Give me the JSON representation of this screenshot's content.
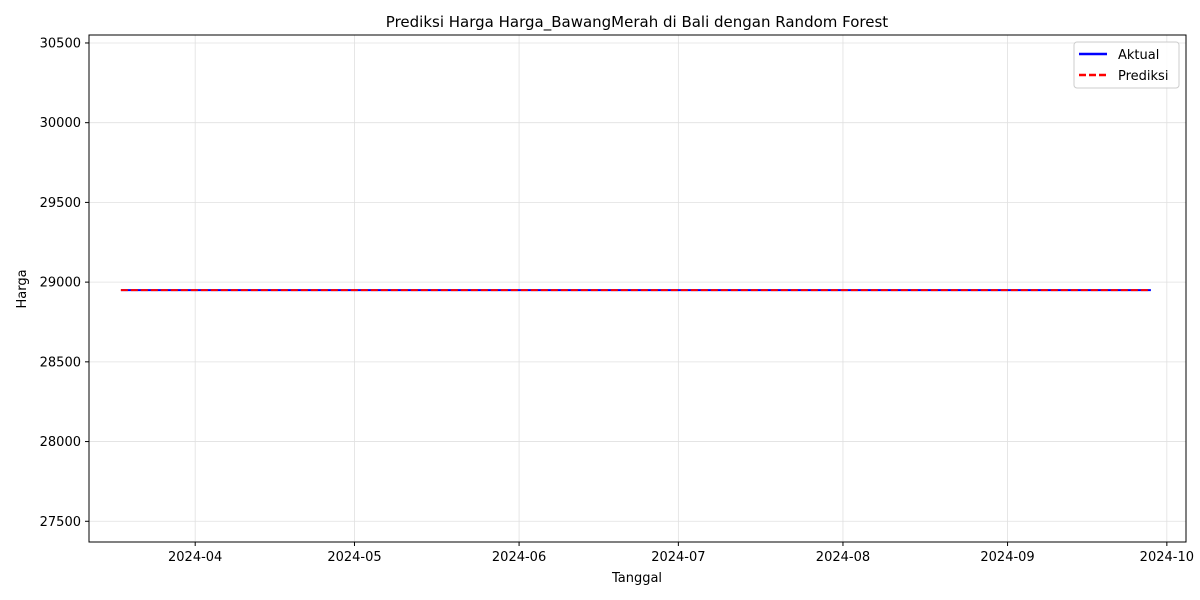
{
  "chart_data": {
    "type": "line",
    "title": "Prediksi Harga Harga_BawangMerah di Bali dengan Random Forest",
    "xlabel": "Tanggal",
    "ylabel": "Harga",
    "x_range": [
      "2024-03-12",
      "2024-09-30"
    ],
    "ylim": [
      27370,
      30550
    ],
    "x_ticks": [
      "2024-04-01",
      "2024-05-01",
      "2024-06-01",
      "2024-07-01",
      "2024-08-01",
      "2024-09-01",
      "2024-10-01"
    ],
    "x_tick_labels": [
      "2024-04",
      "2024-05",
      "2024-06",
      "2024-07",
      "2024-08",
      "2024-09",
      "2024-10"
    ],
    "y_ticks": [
      27500,
      28000,
      28500,
      29000,
      29500,
      30000,
      30500
    ],
    "y_tick_labels": [
      "27500",
      "28000",
      "28500",
      "29000",
      "29500",
      "30000",
      "30500"
    ],
    "grid": true,
    "legend_position": "top-right",
    "series": [
      {
        "name": "Aktual",
        "color": "#0000ff",
        "style": "solid",
        "x": [
          "2024-03-18",
          "2024-09-28"
        ],
        "y": [
          28950,
          28950
        ]
      },
      {
        "name": "Prediksi",
        "color": "#ff0000",
        "style": "dashed",
        "x": [
          "2024-03-18",
          "2024-09-28"
        ],
        "y": [
          28950,
          28950
        ]
      }
    ]
  }
}
